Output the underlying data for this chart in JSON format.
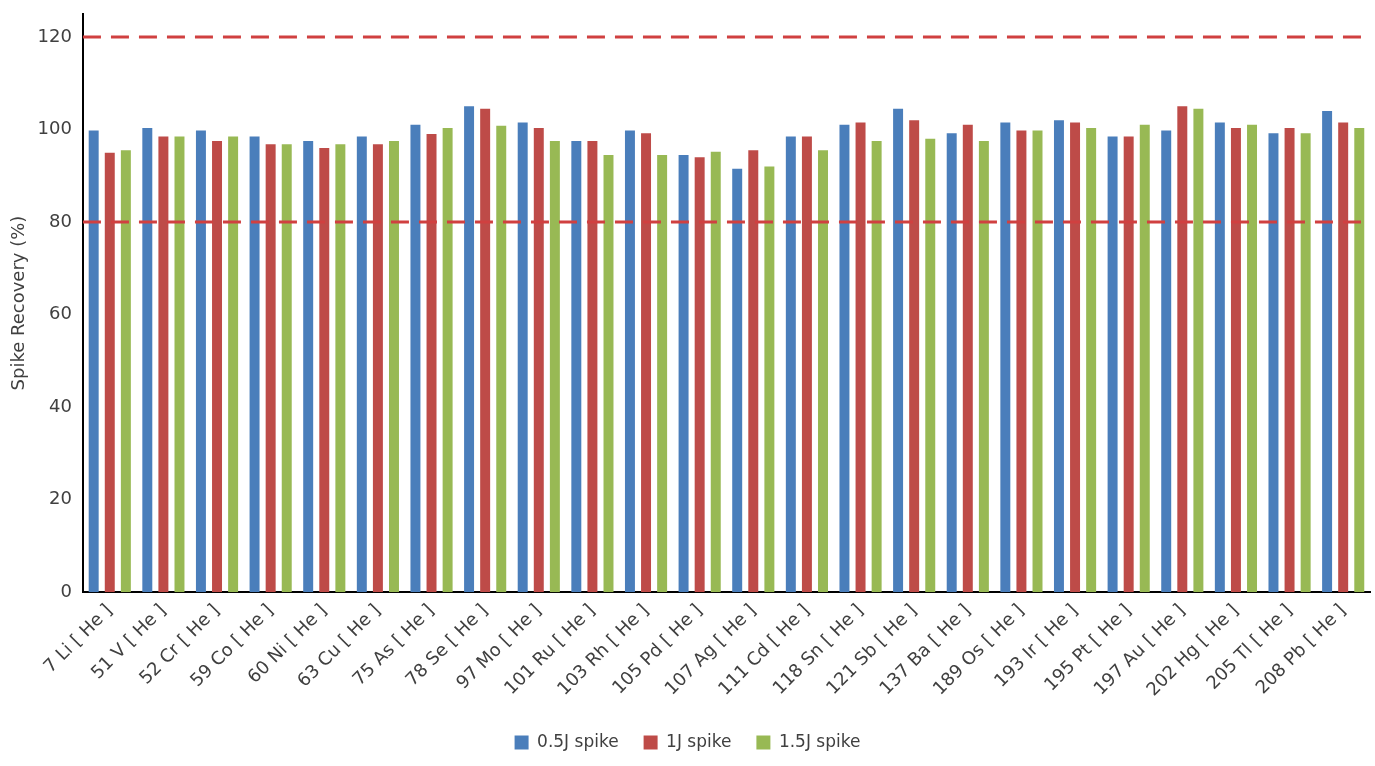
{
  "chart_data": {
    "type": "bar",
    "ylabel": "Spike Recovery (%)",
    "categories": [
      "7 Li [ He ]",
      "51 V [ He ]",
      "52 Cr [ He ]",
      "59 Co [ He ]",
      "60 Ni [ He ]",
      "63 Cu [ He ]",
      "75 As [ He ]",
      "78 Se [ He ]",
      "97 Mo [ He ]",
      "101 Ru [ He ]",
      "103 Rh [ He ]",
      "105 Pd [ He ]",
      "107 Ag [ He ]",
      "111 Cd [ He ]",
      "118 Sn [ He ]",
      "121 Sb [ He ]",
      "137 Ba [ He ]",
      "189 Os [ He ]",
      "193 Ir [ He ]",
      "195 Pt [ He ]",
      "197 Au [ He ]",
      "202 Hg [ He ]",
      "205 Tl [ He ]",
      "208 Pb [ He ]"
    ],
    "series": [
      {
        "name": "0.5J spike",
        "color": "#4a7ebb",
        "values": [
          99.8,
          100.3,
          99.8,
          98.5,
          97.5,
          98.5,
          101,
          105,
          101.5,
          97.5,
          99.8,
          94.5,
          91.5,
          98.5,
          101,
          104.5,
          99.2,
          101.5,
          102,
          98.5,
          99.8,
          101.5,
          99.2,
          104
        ]
      },
      {
        "name": "1J spike",
        "color": "#be4b48",
        "values": [
          95,
          98.5,
          97.5,
          96.8,
          96,
          96.8,
          99,
          104.5,
          100.3,
          97.5,
          99.2,
          94,
          95.5,
          98.5,
          101.5,
          102,
          101,
          99.8,
          101.5,
          98.5,
          105,
          100.3,
          100.3,
          101.5
        ]
      },
      {
        "name": "1.5J spike",
        "color": "#98b954",
        "values": [
          95.5,
          98.5,
          98.5,
          96.8,
          96.8,
          97.5,
          100.3,
          100.8,
          97.5,
          94.5,
          94.5,
          95.2,
          92,
          95.5,
          97.5,
          98,
          97.5,
          99.8,
          100.3,
          101,
          104.5,
          101,
          99.2,
          100.3
        ]
      }
    ],
    "ylim": [
      0,
      125
    ],
    "yticks": [
      0,
      20,
      40,
      60,
      80,
      100,
      120
    ],
    "grid": false,
    "legend": "bottom",
    "ref_lines": [
      {
        "axis": "y",
        "value": 120,
        "color": "#d04040",
        "line_style": "dashed"
      },
      {
        "axis": "y",
        "value": 80,
        "color": "#d04040",
        "line_style": "dashed"
      }
    ]
  }
}
